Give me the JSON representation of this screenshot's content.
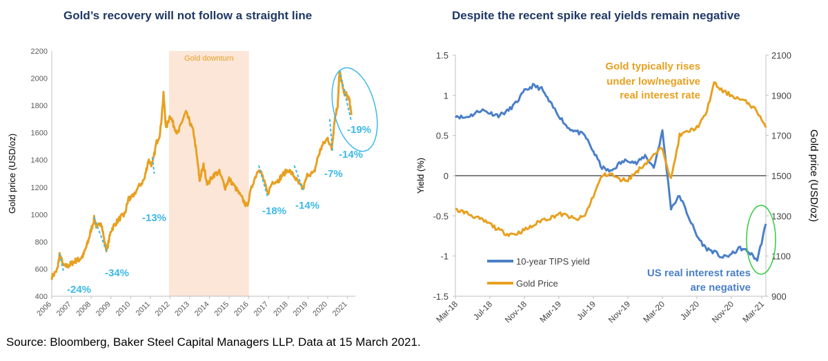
{
  "colors": {
    "gold": "#e8a020",
    "blue": "#4a7fc8",
    "cyan": "#3cb8e8",
    "green": "#2ecc40",
    "band": "#fbe6d8",
    "title": "#1f3864"
  },
  "source": "Source: Bloomberg, Baker Steel Capital Managers LLP. Data at 15 March 2021.",
  "chart_data": [
    {
      "type": "line",
      "title": "Gold’s recovery will not follow a straight line",
      "ylabel": "Gold price (USD/oz)",
      "ylim": [
        400,
        2200
      ],
      "yticks": [
        "400",
        "600",
        "800",
        "1000",
        "1200",
        "1400",
        "1600",
        "1800",
        "2000",
        "2200"
      ],
      "xlim": [
        2006,
        2021.4
      ],
      "xticks": [
        "2006",
        "2007",
        "2008",
        "2009",
        "2010",
        "2011",
        "2012",
        "2013",
        "2014",
        "2015",
        "2016",
        "2017",
        "2018",
        "2019",
        "2020",
        "2021"
      ],
      "shaded_region": {
        "label": "Gold downturn",
        "from": 2011.95,
        "to": 2016.0
      },
      "series": [
        {
          "color": "#e8a020",
          "x": [
            2006.0,
            2006.3,
            2006.4,
            2006.6,
            2006.8,
            2007.0,
            2007.2,
            2007.4,
            2007.6,
            2007.8,
            2007.95,
            2008.15,
            2008.3,
            2008.5,
            2008.7,
            2008.8,
            2009.0,
            2009.2,
            2009.5,
            2009.7,
            2009.9,
            2010.0,
            2010.4,
            2010.7,
            2010.9,
            2011.1,
            2011.3,
            2011.5,
            2011.67,
            2011.8,
            2012.0,
            2012.2,
            2012.4,
            2012.6,
            2012.8,
            2013.0,
            2013.2,
            2013.4,
            2013.5,
            2013.7,
            2013.9,
            2014.2,
            2014.5,
            2014.8,
            2015.0,
            2015.3,
            2015.6,
            2015.9,
            2016.2,
            2016.5,
            2016.7,
            2016.95,
            2017.2,
            2017.5,
            2017.7,
            2018.0,
            2018.3,
            2018.6,
            2018.75,
            2019.0,
            2019.3,
            2019.5,
            2019.7,
            2020.0,
            2020.2,
            2020.35,
            2020.5,
            2020.6,
            2020.8,
            2020.95,
            2021.1,
            2021.2
          ],
          "values": [
            540,
            600,
            710,
            620,
            620,
            640,
            660,
            670,
            700,
            780,
            860,
            970,
            900,
            950,
            780,
            740,
            880,
            930,
            980,
            1000,
            1120,
            1110,
            1200,
            1260,
            1400,
            1360,
            1520,
            1600,
            1880,
            1630,
            1730,
            1650,
            1590,
            1680,
            1750,
            1680,
            1600,
            1380,
            1250,
            1360,
            1220,
            1290,
            1310,
            1200,
            1260,
            1200,
            1130,
            1060,
            1230,
            1340,
            1280,
            1150,
            1240,
            1250,
            1290,
            1330,
            1280,
            1210,
            1190,
            1300,
            1300,
            1420,
            1500,
            1560,
            1480,
            1700,
            1800,
            2050,
            1900,
            1880,
            1840,
            1730
          ]
        }
      ],
      "annotations": [
        "-24%",
        "-34%",
        "-13%",
        "-18%",
        "-14%",
        "-7%",
        "-14%",
        "-19%"
      ]
    },
    {
      "type": "line",
      "title": "Despite the recent spike real yields remain negative",
      "ylabel": "Yield (%)",
      "ylabel_right": "Gold price (USD/oz)",
      "ylim": [
        -1.5,
        1.5
      ],
      "ylim_right": [
        900,
        2100
      ],
      "yticks": [
        "-1.5",
        "-1",
        "-0.5",
        "0",
        "0.5",
        "1",
        "1.5"
      ],
      "yticks_right": [
        "900",
        "1100",
        "1300",
        "1500",
        "1700",
        "1900",
        "2100"
      ],
      "xticks": [
        "Mar-18",
        "Jul-18",
        "Nov-18",
        "Mar-19",
        "Jul-19",
        "Nov-19",
        "Mar-20",
        "Jul-20",
        "Nov-20",
        "Mar-21"
      ],
      "series": [
        {
          "name": "10-year TIPS yield",
          "color": "#4a7fc8",
          "axis": "left",
          "x": [
            0,
            1,
            2,
            3,
            4,
            5,
            6,
            7,
            8,
            9,
            10,
            11,
            12,
            13,
            14,
            15,
            16,
            17,
            18,
            19,
            20,
            21,
            22,
            23,
            24,
            25,
            26,
            27,
            28,
            29,
            30,
            31,
            32,
            33,
            34,
            35,
            36
          ],
          "values": [
            0.75,
            0.72,
            0.76,
            0.82,
            0.78,
            0.75,
            0.8,
            0.9,
            1.05,
            1.12,
            1.08,
            0.9,
            0.75,
            0.6,
            0.55,
            0.5,
            0.3,
            0.1,
            0.05,
            0.15,
            0.2,
            0.15,
            0.25,
            0.1,
            0.55,
            -0.4,
            -0.25,
            -0.5,
            -0.75,
            -0.9,
            -0.95,
            -1.02,
            -0.98,
            -0.9,
            -0.95,
            -1.05,
            -0.6
          ]
        },
        {
          "name": "Gold Price",
          "color": "#e8a020",
          "axis": "right",
          "x": [
            0,
            1,
            2,
            3,
            4,
            5,
            6,
            7,
            8,
            9,
            10,
            11,
            12,
            13,
            14,
            15,
            16,
            17,
            18,
            19,
            20,
            21,
            22,
            23,
            24,
            25,
            26,
            27,
            28,
            29,
            30,
            31,
            32,
            33,
            34,
            35,
            36
          ],
          "values": [
            1330,
            1320,
            1300,
            1280,
            1260,
            1230,
            1210,
            1210,
            1230,
            1250,
            1280,
            1290,
            1310,
            1300,
            1280,
            1300,
            1400,
            1500,
            1510,
            1480,
            1480,
            1520,
            1560,
            1600,
            1640,
            1480,
            1700,
            1720,
            1740,
            1800,
            1960,
            1920,
            1900,
            1880,
            1860,
            1820,
            1740
          ]
        }
      ],
      "annotations": [
        "Gold typically rises",
        "under low/negative",
        "real interest rate",
        "US real interest rates",
        "are negative"
      ]
    }
  ]
}
